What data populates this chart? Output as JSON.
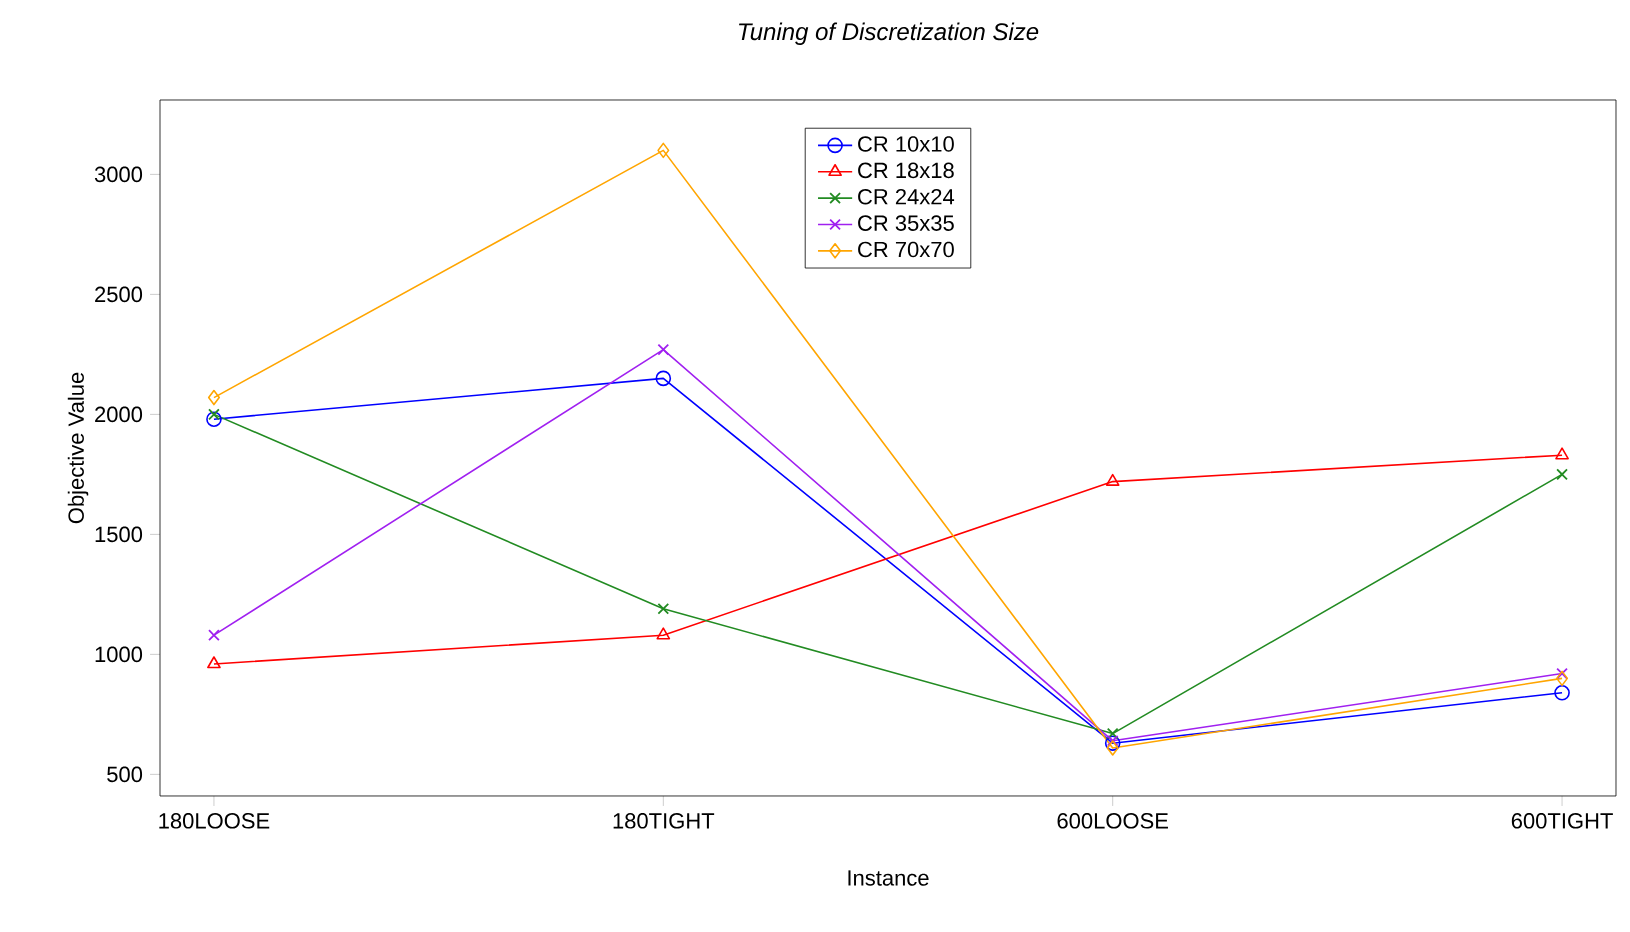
{
  "chart_data": {
    "type": "line",
    "title": "*Tuning of Discretization Size*",
    "xlabel": "Instance",
    "ylabel": "Objective Value",
    "categories": [
      "180LOOSE",
      "180TIGHT",
      "600LOOSE",
      "600TIGHT"
    ],
    "series": [
      {
        "name": "CR 10x10",
        "color": "#0000ff",
        "marker": "circle",
        "values": [
          1980,
          2150,
          630,
          840
        ]
      },
      {
        "name": "CR 18x18",
        "color": "#ff0000",
        "marker": "triangle",
        "values": [
          960,
          1080,
          1720,
          1830
        ]
      },
      {
        "name": "CR 24x24",
        "color": "#228b22",
        "marker": "cross",
        "values": [
          2000,
          1190,
          670,
          1750
        ]
      },
      {
        "name": "CR 35x35",
        "color": "#a020f0",
        "marker": "cross",
        "values": [
          1080,
          2270,
          640,
          920
        ]
      },
      {
        "name": "CR 70x70",
        "color": "#ffa500",
        "marker": "diamond",
        "values": [
          2070,
          3100,
          610,
          900
        ]
      }
    ],
    "ylim": [
      410,
      3310
    ],
    "yticks": [
      500,
      1000,
      1500,
      2000,
      2500,
      3000
    ],
    "grid": false,
    "legend": "top",
    "line_style": "solid"
  }
}
